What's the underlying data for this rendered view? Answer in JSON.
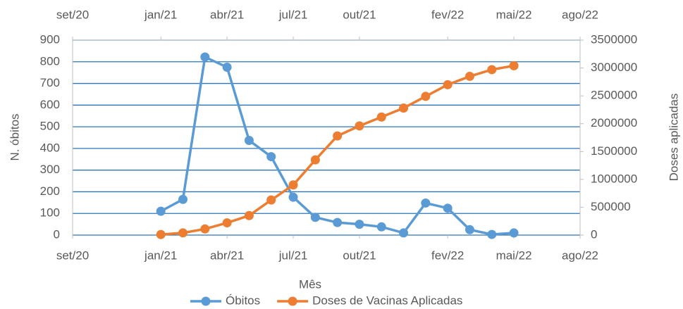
{
  "chart_data": {
    "type": "line",
    "x": [
      "2021-01",
      "2021-02",
      "2021-03",
      "2021-04",
      "2021-05",
      "2021-06",
      "2021-07",
      "2021-08",
      "2021-09",
      "2021-10",
      "2021-11",
      "2021-12",
      "2022-01",
      "2022-02",
      "2022-03",
      "2022-04",
      "2022-05"
    ],
    "series": [
      {
        "name": "Óbitos",
        "color": "#5b9bd5",
        "values": [
          110,
          165,
          822,
          775,
          437,
          362,
          175,
          82,
          58,
          50,
          38,
          10,
          148,
          124,
          25,
          3,
          10
        ]
      },
      {
        "name": "Doses de Vacinas Aplicadas",
        "color": "#ed7d31",
        "axis": "y2",
        "values": [
          10000,
          40000,
          110000,
          220000,
          350000,
          630000,
          900000,
          1350000,
          1780000,
          1960000,
          2120000,
          2280000,
          2490000,
          2700000,
          2850000,
          2970000,
          3040000
        ]
      }
    ],
    "xlabel": "Mês",
    "ylabel": "N. óbitos",
    "y2label": "Doses aplicadas",
    "xlim": [
      "2020-09",
      "2022-08"
    ],
    "xticks": [
      {
        "value": "2020-09",
        "label": "set/20"
      },
      {
        "value": "2021-01",
        "label": "jan/21"
      },
      {
        "value": "2021-04",
        "label": "abr/21"
      },
      {
        "value": "2021-07",
        "label": "jul/21"
      },
      {
        "value": "2021-10",
        "label": "out/21"
      },
      {
        "value": "2022-02",
        "label": "fev/22"
      },
      {
        "value": "2022-05",
        "label": "mai/22"
      },
      {
        "value": "2022-08",
        "label": "ago/22"
      }
    ],
    "ylim": [
      0,
      900
    ],
    "yticks": [
      0,
      100,
      200,
      300,
      400,
      500,
      600,
      700,
      800,
      900
    ],
    "y2lim": [
      0,
      3500000
    ],
    "y2ticks": [
      0,
      500000,
      1000000,
      1500000,
      2000000,
      2500000,
      3000000,
      3500000
    ],
    "grid": true,
    "grid_color": "#2e75b6",
    "legend": "bottom"
  }
}
